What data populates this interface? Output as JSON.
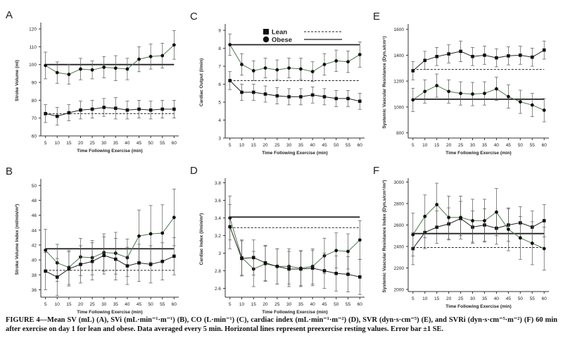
{
  "caption": {
    "lead": "FIGURE 4—Mean SV (mL) (A), SVi (mL·min⁻¹·m⁻¹) (B), CO (L·min⁻¹) (C), cardiac index (mL·min⁻¹·m⁻²) (D), SVR (dyn·s·cm⁻⁵) (E), and SVRi (dyn·s·cm⁻⁵·m⁻²) (F) 60 min after exercise on day 1 for lean and obese. Data averaged every 5 min. Horizontal lines represent preexercise resting values. Error bar ±1 SE."
  },
  "legend": {
    "items": [
      "Lean",
      "Obese"
    ]
  },
  "colors": {
    "obese": "#4a7a4a",
    "lean": "#222222",
    "axis": "#333333"
  },
  "chart_data": [
    {
      "panel": "A",
      "type": "line",
      "xlabel": "Time Following Exercise (min)",
      "ylabel": "Stroke Volume (ml)",
      "x": [
        5,
        10,
        15,
        20,
        25,
        30,
        35,
        40,
        45,
        50,
        55,
        60
      ],
      "yticks": [
        60,
        70,
        80,
        90,
        100,
        110,
        120
      ],
      "ylim": [
        60,
        122
      ],
      "series": [
        {
          "name": "Obese",
          "values": [
            99.5,
            95.5,
            94.5,
            97.5,
            97,
            98.5,
            98,
            97.5,
            103,
            104.5,
            105,
            111
          ],
          "se": [
            7.5,
            6,
            5.5,
            6,
            5,
            6,
            7,
            6,
            7,
            7,
            7,
            8
          ],
          "baseline": 100
        },
        {
          "name": "Lean",
          "values": [
            72.5,
            71,
            73,
            74.5,
            75,
            76,
            75.5,
            74.5,
            75,
            74.5,
            75,
            75
          ],
          "se": [
            5,
            5,
            4.5,
            5,
            5,
            5,
            6,
            5,
            5,
            5,
            5,
            5
          ],
          "baseline": 72.5
        }
      ]
    },
    {
      "panel": "B",
      "type": "line",
      "xlabel": "Time Following Exercise (min)",
      "ylabel": "Stroke Volume Index (ml/min/m²)",
      "x": [
        5,
        10,
        15,
        20,
        25,
        30,
        35,
        40,
        45,
        50,
        55,
        60
      ],
      "yticks": [
        36,
        38,
        40,
        42,
        44,
        46,
        48,
        50
      ],
      "ylim": [
        35,
        50.5
      ],
      "series": [
        {
          "name": "Obese",
          "values": [
            41.3,
            39.6,
            39,
            40.4,
            40.3,
            41,
            40.9,
            40.3,
            43.2,
            43.5,
            43.6,
            45.7
          ],
          "se": [
            2.8,
            2.5,
            2.3,
            2.5,
            2.3,
            2.5,
            2.8,
            2.5,
            3.5,
            3.8,
            3.8,
            3.8
          ],
          "baseline": 41.5
        },
        {
          "name": "Lean",
          "values": [
            38.5,
            37.7,
            38.8,
            39.4,
            39.8,
            40.6,
            40.1,
            39.2,
            39.6,
            39.4,
            39.8,
            40.5
          ],
          "se": [
            2.5,
            2.5,
            2.3,
            2.5,
            2.5,
            2.5,
            2.8,
            2.5,
            2.5,
            2.5,
            2.5,
            2.5
          ],
          "baseline": 38.6
        }
      ]
    },
    {
      "panel": "C",
      "type": "line",
      "xlabel": "Time Following Exercise (min)",
      "ylabel": "Cardiac Output (l/min)",
      "x": [
        5,
        10,
        15,
        20,
        25,
        30,
        35,
        40,
        45,
        50,
        55,
        60
      ],
      "yticks": [
        3,
        4,
        5,
        6,
        7,
        8,
        9
      ],
      "ylim": [
        3,
        9.2
      ],
      "series": [
        {
          "name": "Obese",
          "values": [
            8.2,
            7.1,
            6.75,
            6.9,
            6.8,
            6.9,
            6.85,
            6.7,
            7.1,
            7.3,
            7.25,
            7.65
          ],
          "se": [
            0.6,
            0.6,
            0.55,
            0.55,
            0.55,
            0.55,
            0.6,
            0.55,
            0.6,
            0.6,
            0.6,
            0.7
          ],
          "baseline": 8.2
        },
        {
          "name": "Lean",
          "values": [
            6.2,
            5.55,
            5.55,
            5.45,
            5.35,
            5.3,
            5.3,
            5.4,
            5.3,
            5.2,
            5.2,
            5.05
          ],
          "se": [
            0.5,
            0.45,
            0.45,
            0.45,
            0.45,
            0.45,
            0.45,
            0.45,
            0.45,
            0.45,
            0.45,
            0.45
          ],
          "baseline": 6.2
        }
      ]
    },
    {
      "panel": "D",
      "type": "line",
      "xlabel": "Time Following Exercise (min)",
      "ylabel": "Cardiac Index (l/min/m²)",
      "x": [
        5,
        10,
        15,
        20,
        25,
        30,
        35,
        40,
        45,
        50,
        55,
        60
      ],
      "yticks": [
        2.6,
        2.8,
        3.0,
        3.2,
        3.4,
        3.6,
        3.8
      ],
      "ylim": [
        2.5,
        3.82
      ],
      "series": [
        {
          "name": "Obese",
          "values": [
            3.4,
            2.95,
            2.82,
            2.88,
            2.85,
            2.85,
            2.83,
            2.85,
            2.97,
            3.03,
            3.02,
            3.15
          ],
          "se": [
            0.25,
            0.2,
            0.2,
            0.2,
            0.2,
            0.2,
            0.2,
            0.2,
            0.2,
            0.2,
            0.2,
            0.22
          ],
          "baseline": 3.41
        },
        {
          "name": "Lean",
          "values": [
            3.3,
            2.94,
            2.95,
            2.89,
            2.85,
            2.82,
            2.82,
            2.83,
            2.8,
            2.77,
            2.76,
            2.73
          ],
          "se": [
            0.25,
            0.2,
            0.2,
            0.2,
            0.2,
            0.2,
            0.2,
            0.2,
            0.2,
            0.2,
            0.2,
            0.2
          ],
          "baseline": 3.29
        }
      ]
    },
    {
      "panel": "E",
      "type": "line",
      "xlabel": "Time Following Exercise (min)",
      "ylabel": "Systemic Vascular Resistance (Dyn.s/cm⁵)",
      "x": [
        5,
        10,
        15,
        20,
        25,
        30,
        35,
        40,
        45,
        50,
        55,
        60
      ],
      "yticks": [
        800,
        1000,
        1200,
        1400,
        1600
      ],
      "ylim": [
        760,
        1620
      ],
      "series": [
        {
          "name": "Lean",
          "values": [
            1280,
            1360,
            1390,
            1410,
            1430,
            1390,
            1400,
            1380,
            1395,
            1400,
            1385,
            1440
          ],
          "se": [
            70,
            70,
            70,
            70,
            80,
            70,
            70,
            70,
            70,
            70,
            70,
            70
          ],
          "baseline": 1290
        },
        {
          "name": "Obese",
          "values": [
            1055,
            1120,
            1165,
            1120,
            1105,
            1100,
            1105,
            1140,
            1080,
            1040,
            1015,
            975
          ],
          "se": [
            90,
            90,
            90,
            90,
            90,
            90,
            90,
            90,
            90,
            90,
            90,
            90
          ],
          "baseline": 1060
        }
      ]
    },
    {
      "panel": "F",
      "type": "line",
      "xlabel": "Time Following Exercise (min)",
      "ylabel": "Systemic Vascular Resistance Index (Dyn.s/cm⁵/m²)",
      "x": [
        5,
        10,
        15,
        20,
        25,
        30,
        35,
        40,
        45,
        50,
        55,
        60
      ],
      "yticks": [
        2000,
        2200,
        2400,
        2600,
        2800,
        3000
      ],
      "ylim": [
        1980,
        3010
      ],
      "series": [
        {
          "name": "Lean",
          "values": [
            2380,
            2530,
            2580,
            2610,
            2660,
            2580,
            2600,
            2570,
            2600,
            2620,
            2580,
            2640
          ],
          "se": [
            150,
            150,
            150,
            150,
            160,
            150,
            150,
            150,
            150,
            150,
            150,
            150
          ],
          "baseline": 2390
        },
        {
          "name": "Obese",
          "values": [
            2510,
            2680,
            2790,
            2670,
            2670,
            2640,
            2640,
            2720,
            2560,
            2480,
            2430,
            2380
          ],
          "se": [
            200,
            200,
            200,
            200,
            200,
            200,
            200,
            220,
            200,
            200,
            200,
            200
          ],
          "baseline": 2520
        }
      ]
    }
  ]
}
